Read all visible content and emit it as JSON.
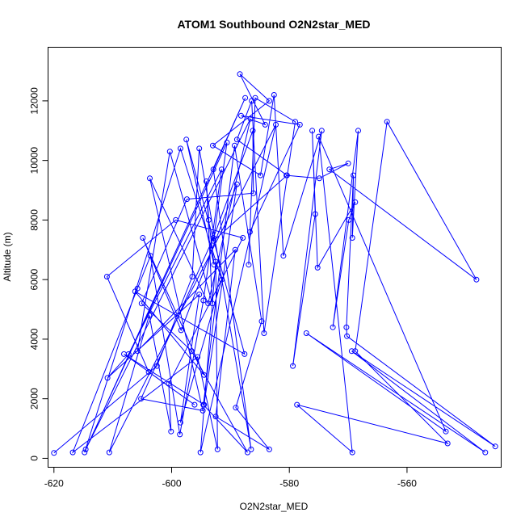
{
  "chart_data": {
    "type": "line",
    "title": "ATOM1 Southbound O2N2star_MED",
    "xlabel": "O2N2star_MED",
    "ylabel": "Altitude (m)",
    "xlim": [
      -621,
      -544
    ],
    "ylim": [
      -300,
      13800
    ],
    "xticks": [
      -620,
      -600,
      -580,
      -560
    ],
    "yticks": [
      0,
      2000,
      4000,
      6000,
      8000,
      10000,
      12000
    ],
    "grid": false,
    "legend": "none",
    "colors": {
      "series": "#0000ff",
      "axis": "#000000"
    },
    "series": [
      {
        "x": [
          -620.0,
          -602.5,
          -596.5,
          -595.3,
          -586.5,
          -592.9,
          -587.5,
          -614.8,
          -598.5,
          -591.5,
          -598.5,
          -595.3,
          -610.9,
          -607.3,
          -591.5,
          -594.6,
          -598.6,
          -603.6,
          -605.8,
          -616.8,
          -595.6,
          -592.2,
          -592.5,
          -595.1,
          -582.3,
          -610.6,
          -603.8,
          -600.1,
          -600.5,
          -587.9,
          -599.3,
          -611.0,
          -603.9,
          -596.1,
          -608.1,
          -594.5,
          -588.9,
          -598.4,
          -604.9,
          -594.5,
          -606.2,
          -587.6,
          -597.5,
          -592.8,
          -593.7,
          -594.1,
          -593.1,
          -600.3,
          -605.8,
          -589.2,
          -592.5,
          -583.4,
          -589.1,
          -584.7,
          -589.3,
          -594.6,
          -587.1,
          -596.6,
          -605.1,
          -597.4,
          -586.1,
          -586.2,
          -592.9,
          -605.2,
          -594.7,
          -603.7,
          -593.8,
          -586.6,
          -614.6,
          -590.6,
          -592.9,
          -580.4,
          -588.9,
          -586.4,
          -584.3,
          -579.0,
          -585.8,
          -586.9,
          -586.7,
          -578.2,
          -588.2,
          -584.1,
          -588.4,
          -583.4,
          -593.0,
          -584.9,
          -582.6,
          -581.0,
          -574.5,
          -579.4,
          -575.6,
          -576.1,
          -575.2,
          -568.8,
          -569.9,
          -572.6,
          -568.3,
          -569.3,
          -569.1,
          -570.3,
          -570.2,
          -545.0,
          -569.4,
          -546.7,
          -577.1,
          -553.4,
          -575.0,
          -569.3,
          -578.7,
          -553.1,
          -568.8,
          -563.4,
          -548.2,
          -573.2,
          -570.0,
          -574.9,
          -580.5
        ],
        "y": [
          180,
          3100,
          6100,
          10400,
          300,
          9700,
          12100,
          200,
          10400,
          6000,
          1200,
          5500,
          2700,
          3500,
          9700,
          5300,
          800,
          6800,
          5700,
          200,
          3400,
          300,
          6600,
          200,
          11200,
          200,
          4800,
          900,
          2500,
          7400,
          8000,
          6100,
          2900,
          1800,
          3500,
          1800,
          9200,
          4300,
          7400,
          2800,
          5600,
          3500,
          10700,
          6500,
          8000,
          9300,
          5200,
          10300,
          3600,
          7000,
          1400,
          300,
          1700,
          4600,
          10500,
          1800,
          200,
          3600,
          5200,
          8700,
          8900,
          11000,
          7400,
          2000,
          1600,
          9400,
          5200,
          11400,
          300,
          10600,
          7300,
          9500,
          10700,
          12000,
          4200,
          11300,
          12100,
          6500,
          7600,
          11200,
          11500,
          11200,
          12900,
          12000,
          10500,
          9500,
          12200,
          6800,
          11000,
          3100,
          8200,
          11000,
          6400,
          8600,
          8000,
          4400,
          11000,
          7400,
          9500,
          4400,
          4100,
          400,
          3600,
          200,
          4200,
          900,
          10800,
          200,
          1800,
          500,
          3600,
          11300,
          6000,
          9700,
          9900,
          9400,
          9500
        ]
      }
    ]
  }
}
